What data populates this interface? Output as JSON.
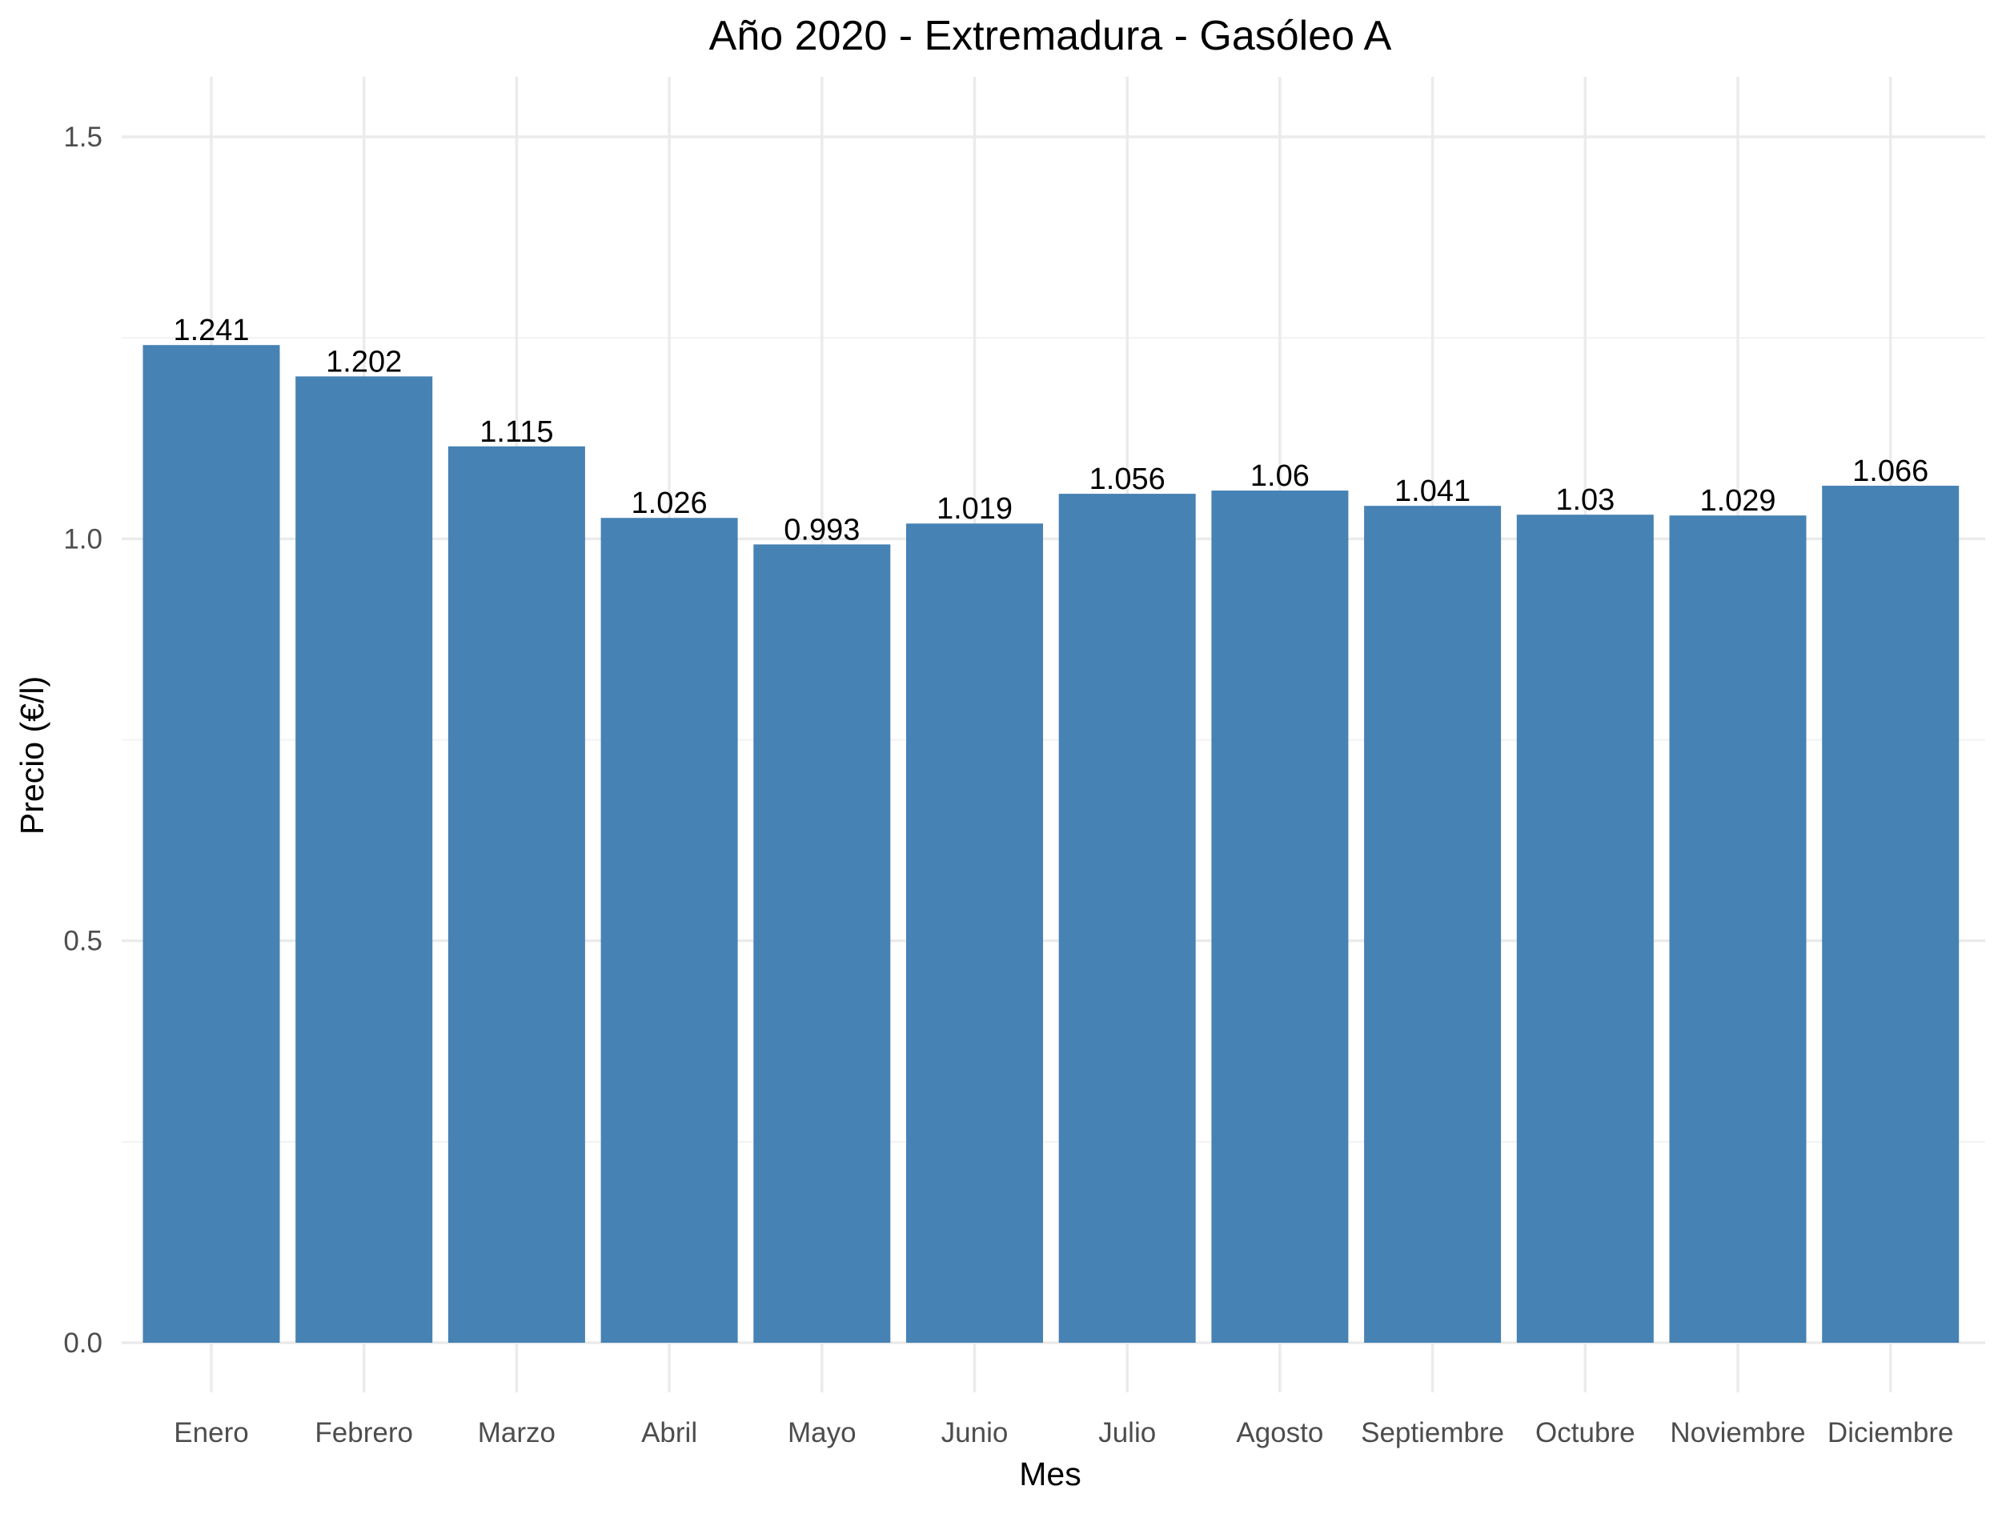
{
  "chart_data": {
    "type": "bar",
    "title": "Año 2020 - Extremadura - Gasóleo A",
    "xlabel": "Mes",
    "ylabel": "Precio (€/l)",
    "categories": [
      "Enero",
      "Febrero",
      "Marzo",
      "Abril",
      "Mayo",
      "Junio",
      "Julio",
      "Agosto",
      "Septiembre",
      "Octubre",
      "Noviembre",
      "Diciembre"
    ],
    "values": [
      1.241,
      1.202,
      1.115,
      1.026,
      0.993,
      1.019,
      1.056,
      1.06,
      1.041,
      1.03,
      1.029,
      1.066
    ],
    "value_labels": [
      "1.241",
      "1.202",
      "1.115",
      "1.026",
      "0.993",
      "1.019",
      "1.056",
      "1.06",
      "1.041",
      "1.03",
      "1.029",
      "1.066"
    ],
    "ylim": [
      0,
      1.5
    ],
    "yticks": [
      0,
      0.5,
      1.0,
      1.5
    ],
    "ytick_labels": [
      "0.0",
      "0.5",
      "1.0",
      "1.5"
    ],
    "y_minor_ticks": [
      0.25,
      0.75,
      1.25
    ],
    "grid": true,
    "legend": "none",
    "bar_color": "#4682b4"
  }
}
